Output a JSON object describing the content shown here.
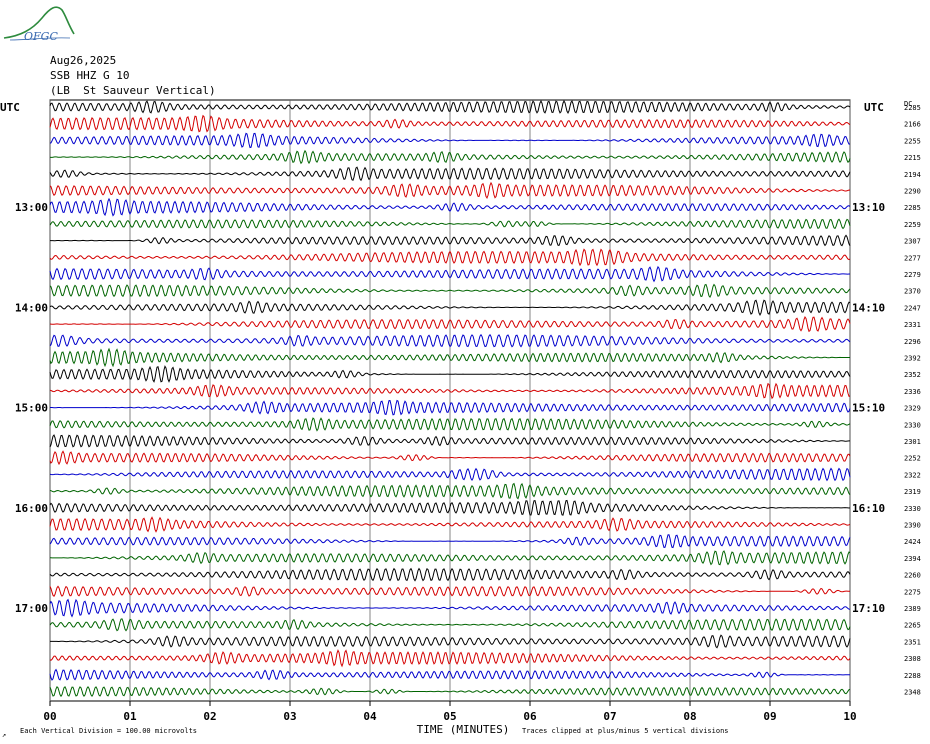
{
  "header": {
    "logo_text": "OFGC",
    "date": "Aug26,2025",
    "station": "SSB HHZ G 10",
    "location": "(LB  St Sauveur Vertical)"
  },
  "labels": {
    "utc_left": "UTC",
    "utc_right": "UTC",
    "dc_header": "DC",
    "xlabel": "TIME (MINUTES)",
    "footer_left": "Each Vertical Division =  100.00 microvolts",
    "footer_right": "Traces clipped at plus/minus 5 vertical divisions",
    "footer_mark": "↗"
  },
  "colors": [
    "#000000",
    "#d40000",
    "#0000cc",
    "#006400"
  ],
  "chart_data": {
    "type": "line",
    "title": "SSB HHZ G 10 (LB  St Sauveur Vertical)",
    "xlabel": "TIME (MINUTES)",
    "x_ticks": [
      "00",
      "01",
      "02",
      "03",
      "04",
      "05",
      "06",
      "07",
      "08",
      "09",
      "10"
    ],
    "xlim": [
      0,
      10
    ],
    "left_hour_labels": [
      {
        "row": 6,
        "text": "13:00"
      },
      {
        "row": 12,
        "text": "14:00"
      },
      {
        "row": 18,
        "text": "15:00"
      },
      {
        "row": 24,
        "text": "16:00"
      },
      {
        "row": 30,
        "text": "17:00"
      }
    ],
    "right_hour_labels": [
      {
        "row": 6,
        "text": "13:10"
      },
      {
        "row": 12,
        "text": "14:10"
      },
      {
        "row": 18,
        "text": "15:10"
      },
      {
        "row": 24,
        "text": "16:10"
      },
      {
        "row": 30,
        "text": "17:10"
      }
    ],
    "dc_offsets": [
      2285,
      2166,
      2255,
      2215,
      2194,
      2290,
      2285,
      2259,
      2307,
      2277,
      2279,
      2370,
      2247,
      2331,
      2296,
      2392,
      2352,
      2336,
      2329,
      2330,
      2301,
      2252,
      2322,
      2319,
      2330,
      2390,
      2424,
      2394,
      2260,
      2275,
      2389,
      2265,
      2351,
      2308,
      2288,
      2348
    ],
    "trace_count": 36,
    "grid": true
  }
}
